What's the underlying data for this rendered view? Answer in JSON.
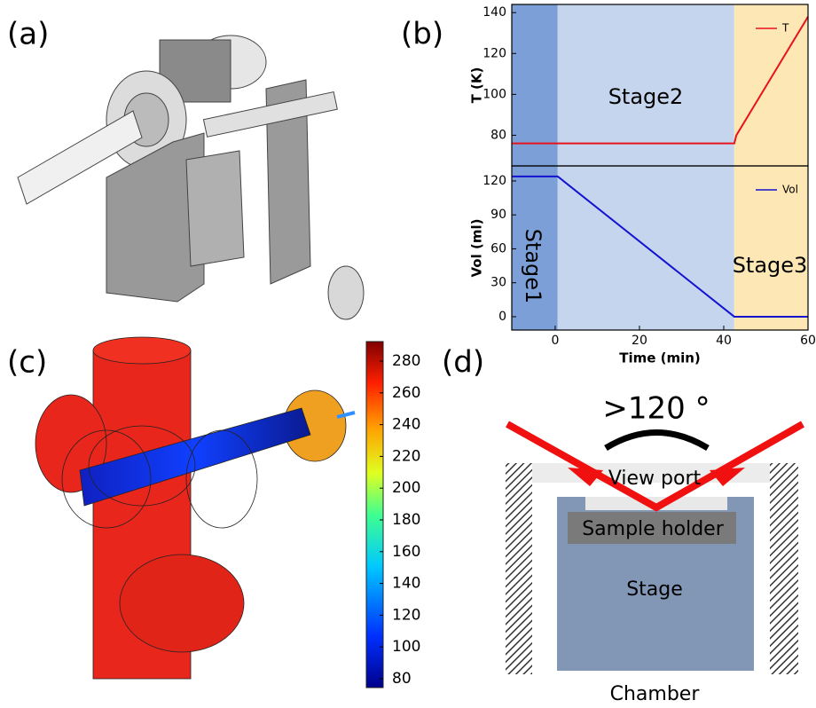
{
  "panel_labels": [
    "(a)",
    "(b)",
    "(c)",
    "(d)"
  ],
  "stages": [
    {
      "label": "Stage1",
      "start": -10.3,
      "end": 0.6,
      "color": "#7b9fd6"
    },
    {
      "label": "Stage2",
      "start": 0.6,
      "end": 42.5,
      "color": "#c6d5ee"
    },
    {
      "label": "Stage3",
      "start": 42.5,
      "end": 60,
      "color": "#fde7b5"
    }
  ],
  "chart_data": [
    {
      "type": "line",
      "ylabel": "T (K)",
      "x": [
        -10.3,
        42.5,
        43,
        60
      ],
      "series": [
        {
          "name": "T",
          "color": "#e8141c",
          "values": [
            76,
            76,
            80,
            138
          ]
        }
      ],
      "xlim": [
        -10.3,
        60
      ],
      "ylim": [
        65,
        144
      ],
      "yticks": [
        80,
        100,
        120,
        140
      ],
      "legend": "upper right"
    },
    {
      "type": "line",
      "ylabel": "Vol (ml)",
      "xlabel": "Time (min)",
      "x": [
        -10.3,
        0.6,
        42.5,
        60
      ],
      "series": [
        {
          "name": "Vol",
          "color": "#1414d0",
          "values": [
            124,
            124,
            0,
            0
          ]
        }
      ],
      "xlim": [
        -10.3,
        60
      ],
      "ylim": [
        -11.8,
        133.3
      ],
      "xticks": [
        0,
        20,
        40,
        60
      ],
      "yticks": [
        0,
        30,
        60,
        90,
        120
      ],
      "legend": "upper right"
    }
  ],
  "colorbar": {
    "lim": [
      74.4,
      292.3
    ],
    "ticks": [
      80,
      100,
      120,
      140,
      160,
      180,
      200,
      220,
      240,
      260,
      280
    ]
  },
  "schematic": {
    "angle": ">120 °",
    "view_port": "View port",
    "sample_holder": "Sample holder",
    "stage": "Stage",
    "chamber": "Chamber"
  }
}
